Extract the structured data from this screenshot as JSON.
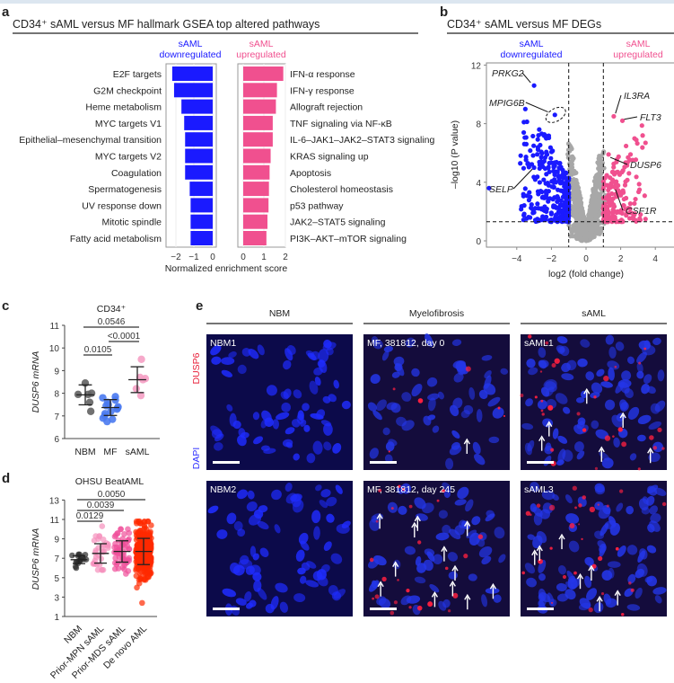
{
  "colors": {
    "down": "#1a1aff",
    "up": "#f0508f",
    "gray": "#a8a8a8",
    "dusp6": "#e8203a",
    "dapi": "#3030ff"
  },
  "chart_data": [
    {
      "panel": "a",
      "type": "bar",
      "title": "CD34⁺ sAML versus MF hallmark GSEA top altered pathways",
      "xlabel": "Normalized enrichment score",
      "groups": [
        {
          "header": [
            "sAML",
            "downregulated"
          ],
          "color": "#1a1aff",
          "xticks": [
            "-2",
            "-1",
            "0"
          ],
          "xlim": [
            -2.4,
            0
          ],
          "categories": [
            "E2F targets",
            "G2M checkpoint",
            "Heme metabolism",
            "MYC targets V1",
            "Epithelial–mesenchymal transition",
            "MYC targets V2",
            "Coagulation",
            "Spermatogenesis",
            "UV response down",
            "Mitotic spindle",
            "Fatty acid metabolism"
          ],
          "values": [
            -2.2,
            -2.1,
            -1.7,
            -1.55,
            -1.5,
            -1.5,
            -1.5,
            -1.25,
            -1.2,
            -1.2,
            -1.2
          ]
        },
        {
          "header": [
            "sAML",
            "upregulated"
          ],
          "color": "#f0508f",
          "xticks": [
            "0",
            "1",
            "2"
          ],
          "xlim": [
            0,
            2.1
          ],
          "categories": [
            "IFN-α response",
            "IFN-γ response",
            "Allograft rejection",
            "TNF signaling via NF-κB",
            "IL-6–JAK1–JAK2–STAT3 signaling",
            "KRAS signaling up",
            "Apoptosis",
            "Cholesterol homeostasis",
            "p53 pathway",
            "JAK2–STAT5 signaling",
            "PI3K–AKT–mTOR signaling"
          ],
          "values": [
            1.9,
            1.6,
            1.55,
            1.4,
            1.4,
            1.3,
            1.25,
            1.22,
            1.2,
            1.15,
            1.1
          ]
        }
      ]
    },
    {
      "panel": "b",
      "type": "scatter",
      "title": "CD34⁺ sAML versus MF DEGs",
      "xlabel": "log2 (fold change)",
      "ylabel": "–log10 (P value)",
      "xticks": [
        -4,
        -2,
        0,
        2,
        4
      ],
      "yticks": [
        0,
        4,
        8,
        12
      ],
      "xlim": [
        -5.8,
        4.9
      ],
      "ylim": [
        -0.3,
        12.2
      ],
      "thresholds": {
        "fold_change": [
          -1,
          1
        ],
        "neg_log10_p": 1.3
      },
      "headers": {
        "down": [
          "sAML",
          "downregulated"
        ],
        "up": [
          "sAML",
          "upregulated"
        ]
      },
      "labeled_genes": [
        {
          "gene": "PRKG2",
          "x": -3.0,
          "y": 10.6
        },
        {
          "gene": "MPIG6B",
          "x": -1.8,
          "y": 8.6
        },
        {
          "gene": "SELP",
          "x": -3.0,
          "y": 5.0
        },
        {
          "gene": "IL3RA",
          "x": 1.6,
          "y": 8.5
        },
        {
          "gene": "FLT3",
          "x": 2.1,
          "y": 8.2
        },
        {
          "gene": "DUSP6",
          "x": 1.3,
          "y": 5.9
        },
        {
          "gene": "CSF1R",
          "x": 1.6,
          "y": 3.7
        }
      ]
    },
    {
      "panel": "c",
      "type": "scatter",
      "title": "CD34⁺",
      "ylabel": "DUSP6 mRNA",
      "ylim": [
        6,
        11
      ],
      "yticks": [
        6,
        7,
        8,
        9,
        10,
        11
      ],
      "categories": [
        "NBM",
        "MF",
        "sAML"
      ],
      "series": [
        {
          "name": "NBM",
          "color": "#626262",
          "values": [
            8.45,
            8.0,
            7.95,
            7.95,
            7.6,
            7.2
          ],
          "mean": 7.93,
          "sd": 0.44
        },
        {
          "name": "MF",
          "color": "#4a7af0",
          "values": [
            7.85,
            7.8,
            7.7,
            7.6,
            7.5,
            7.45,
            7.4,
            7.35,
            7.3,
            7.2,
            7.1,
            7.0,
            6.9,
            6.85,
            6.75
          ],
          "mean": 7.37,
          "sd": 0.35
        },
        {
          "name": "sAML",
          "color": "#f5a0c4",
          "values": [
            9.5,
            8.7,
            8.65,
            8.6,
            8.2,
            7.9
          ],
          "mean": 8.6,
          "sd": 0.57
        }
      ],
      "comparisons": [
        {
          "pair": [
            "NBM",
            "sAML"
          ],
          "p": "0.0546"
        },
        {
          "pair": [
            "MF",
            "sAML"
          ],
          "p": "<0.0001"
        },
        {
          "pair": [
            "NBM",
            "MF"
          ],
          "p": "0.0105"
        }
      ]
    },
    {
      "panel": "d",
      "type": "scatter",
      "title": "OHSU BeatAML",
      "ylabel": "DUSP6 mRNA",
      "ylim": [
        1,
        13
      ],
      "yticks": [
        1,
        3,
        5,
        7,
        9,
        11,
        13
      ],
      "categories": [
        "NBM",
        "Prior-MPN sAML",
        "Prior-MDS sAML",
        "De novo AML"
      ],
      "series": [
        {
          "name": "NBM",
          "color": "#2a2a2a",
          "mean": 6.85,
          "sd": 0.4,
          "min": 6.0,
          "max": 7.4
        },
        {
          "name": "Prior-MPN sAML",
          "color": "#f590bc",
          "mean": 7.5,
          "sd": 1.0,
          "min": 5.8,
          "max": 10.3
        },
        {
          "name": "Prior-MDS sAML",
          "color": "#f0509a",
          "mean": 7.7,
          "sd": 1.1,
          "min": 5.4,
          "max": 10.0
        },
        {
          "name": "De novo AML",
          "color": "#ff2a00",
          "mean": 7.7,
          "sd": 1.35,
          "min": 2.4,
          "max": 10.8
        }
      ],
      "comparisons": [
        {
          "pair": [
            "NBM",
            "De novo AML"
          ],
          "p": "0.0050"
        },
        {
          "pair": [
            "NBM",
            "Prior-MDS sAML"
          ],
          "p": "0.0039"
        },
        {
          "pair": [
            "NBM",
            "Prior-MPN sAML"
          ],
          "p": "0.0129"
        }
      ]
    }
  ],
  "panels": {
    "a": "a",
    "b": "b",
    "c": "c",
    "d": "d",
    "e": "e"
  },
  "panel_e": {
    "columns": [
      "NBM",
      "Myelofibrosis",
      "sAML"
    ],
    "stain_labels": {
      "dusp6": "DUSP6",
      "dapi": "DAPI"
    },
    "images": [
      {
        "label": "NBM1",
        "arrows": 0
      },
      {
        "label": "MF, 381812, day 0",
        "arrows": 1
      },
      {
        "label": "sAML1",
        "arrows": 6
      },
      {
        "label": "NBM2",
        "arrows": 0
      },
      {
        "label": "MF, 381812, day 245",
        "arrows": 12
      },
      {
        "label": "sAML3",
        "arrows": 7
      }
    ]
  }
}
